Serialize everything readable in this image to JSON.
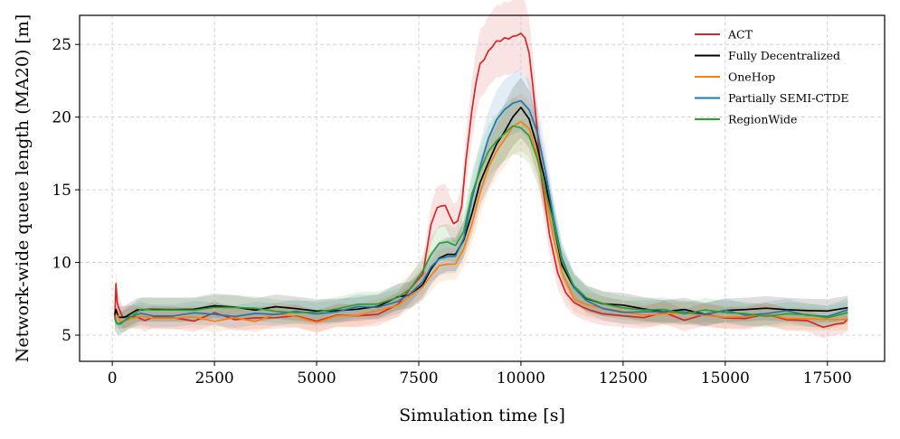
{
  "chart_data": {
    "type": "line",
    "title": "",
    "xlabel": "Simulation time [s]",
    "ylabel": "Network-wide queue length (MA20) [m]",
    "xlim": [
      -800,
      18900
    ],
    "ylim": [
      3.2,
      27
    ],
    "xticks": [
      0,
      2500,
      5000,
      7500,
      10000,
      12500,
      15000,
      17500
    ],
    "yticks": [
      5,
      10,
      15,
      20,
      25
    ],
    "grid": true,
    "legend_position": "top-right",
    "series": [
      {
        "name": "ACT",
        "color": "#d62728",
        "x": [
          60,
          90,
          120,
          160,
          250,
          400,
          600,
          800,
          1000,
          1500,
          2000,
          2500,
          3000,
          3500,
          4000,
          4500,
          5000,
          5500,
          6000,
          6500,
          7000,
          7300,
          7600,
          7800,
          7950,
          8050,
          8150,
          8250,
          8350,
          8450,
          8550,
          8650,
          8800,
          8900,
          9000,
          9100,
          9200,
          9300,
          9400,
          9500,
          9600,
          9700,
          9800,
          9900,
          10000,
          10100,
          10200,
          10300,
          10400,
          10500,
          10700,
          10900,
          11100,
          11300,
          11500,
          11700,
          12000,
          12500,
          13000,
          13500,
          14000,
          14500,
          15000,
          15500,
          16000,
          16500,
          17000,
          17400,
          17700,
          17900,
          18000
        ],
        "values": [
          6.2,
          8.4,
          7.4,
          6.9,
          6.1,
          6.4,
          6.3,
          6.0,
          6.2,
          6.3,
          6.1,
          6.4,
          6.1,
          6.3,
          6.2,
          6.4,
          6.1,
          6.3,
          6.4,
          6.5,
          7.3,
          8.1,
          9.3,
          12.5,
          13.8,
          14.0,
          13.9,
          13.3,
          12.6,
          12.8,
          14.0,
          17.0,
          20.5,
          22.5,
          23.5,
          24.0,
          24.5,
          24.8,
          25.1,
          25.3,
          25.5,
          25.4,
          25.6,
          25.5,
          25.8,
          25.5,
          24.5,
          22.0,
          19.0,
          16.0,
          12.0,
          9.2,
          7.8,
          7.1,
          6.8,
          6.6,
          6.4,
          6.3,
          6.2,
          6.4,
          6.1,
          6.5,
          6.3,
          6.2,
          6.4,
          6.0,
          6.1,
          5.4,
          5.6,
          5.9,
          6.1
        ]
      },
      {
        "name": "Fully Decentralized",
        "color": "#000000",
        "x": [
          60,
          90,
          150,
          300,
          600,
          900,
          1500,
          2000,
          2500,
          3000,
          3500,
          4000,
          4500,
          5000,
          5500,
          6000,
          6500,
          7000,
          7300,
          7600,
          7800,
          8000,
          8200,
          8400,
          8600,
          8800,
          9000,
          9200,
          9400,
          9600,
          9800,
          10000,
          10200,
          10400,
          10600,
          10800,
          11000,
          11300,
          11600,
          12000,
          12500,
          13000,
          13500,
          14000,
          14500,
          15000,
          15500,
          16000,
          16500,
          17000,
          17500,
          18000
        ],
        "values": [
          6.4,
          6.8,
          6.3,
          6.2,
          6.6,
          6.8,
          6.7,
          6.8,
          6.9,
          6.8,
          6.7,
          6.8,
          6.8,
          6.6,
          6.8,
          6.9,
          7.1,
          7.5,
          7.9,
          8.5,
          9.5,
          10.2,
          10.4,
          10.5,
          11.5,
          13.5,
          15.5,
          17.0,
          18.2,
          19.0,
          20.0,
          20.5,
          20.0,
          18.0,
          15.5,
          12.5,
          10.0,
          8.3,
          7.4,
          7.0,
          6.9,
          6.7,
          6.6,
          6.7,
          6.6,
          6.8,
          6.6,
          6.7,
          6.8,
          6.8,
          6.5,
          6.9
        ]
      },
      {
        "name": "OneHop",
        "color": "#ff7f0e",
        "x": [
          60,
          120,
          200,
          400,
          700,
          1000,
          1500,
          2000,
          2500,
          3000,
          3500,
          4000,
          4500,
          5000,
          5500,
          6000,
          6500,
          7000,
          7300,
          7600,
          7800,
          8000,
          8200,
          8400,
          8600,
          8800,
          9000,
          9200,
          9400,
          9600,
          9800,
          10000,
          10200,
          10400,
          10600,
          10800,
          11000,
          11300,
          11600,
          12000,
          12500,
          13000,
          13500,
          14000,
          14500,
          15000,
          15500,
          16000,
          16500,
          17000,
          17500,
          18000
        ],
        "values": [
          6.0,
          6.2,
          5.9,
          6.0,
          6.2,
          6.1,
          6.0,
          6.3,
          6.1,
          6.2,
          6.1,
          6.3,
          6.2,
          6.0,
          6.2,
          6.5,
          6.8,
          7.2,
          7.6,
          8.3,
          9.2,
          9.7,
          9.8,
          9.9,
          10.8,
          12.8,
          14.8,
          16.4,
          17.5,
          18.5,
          19.2,
          19.6,
          19.1,
          17.3,
          14.8,
          11.8,
          9.4,
          7.6,
          7.0,
          6.8,
          6.6,
          6.5,
          6.4,
          6.5,
          6.3,
          6.4,
          6.2,
          6.4,
          6.3,
          6.2,
          6.0,
          6.2
        ]
      },
      {
        "name": "Partially SEMI-CTDE",
        "color": "#1f77b4",
        "x": [
          60,
          120,
          200,
          400,
          700,
          1000,
          1500,
          2000,
          2500,
          3000,
          3500,
          4000,
          4500,
          5000,
          5500,
          6000,
          6500,
          7000,
          7300,
          7600,
          7800,
          8000,
          8200,
          8400,
          8600,
          8800,
          9000,
          9200,
          9400,
          9600,
          9800,
          10000,
          10200,
          10400,
          10600,
          10800,
          11000,
          11300,
          11600,
          12000,
          12500,
          13000,
          13500,
          14000,
          14500,
          15000,
          15500,
          16000,
          16500,
          17000,
          17500,
          18000
        ],
        "values": [
          6.2,
          5.8,
          5.7,
          6.1,
          6.4,
          6.5,
          6.4,
          6.6,
          6.5,
          6.4,
          6.5,
          6.6,
          6.5,
          6.4,
          6.6,
          6.8,
          7.0,
          7.4,
          7.8,
          8.6,
          9.6,
          10.2,
          10.4,
          10.5,
          11.8,
          14.2,
          16.6,
          18.5,
          19.8,
          20.6,
          21.0,
          21.1,
          20.5,
          18.8,
          16.2,
          13.0,
          10.2,
          8.1,
          7.3,
          6.9,
          6.7,
          6.6,
          6.5,
          6.6,
          6.5,
          6.6,
          6.4,
          6.5,
          6.6,
          6.4,
          6.3,
          6.6
        ]
      },
      {
        "name": "RegionWide",
        "color": "#2ca02c",
        "x": [
          60,
          120,
          200,
          400,
          700,
          1000,
          1500,
          2000,
          2500,
          3000,
          3500,
          4000,
          4500,
          5000,
          5500,
          6000,
          6500,
          7000,
          7300,
          7600,
          7800,
          8000,
          8200,
          8400,
          8600,
          8800,
          9000,
          9200,
          9400,
          9600,
          9800,
          10000,
          10200,
          10400,
          10600,
          10800,
          11000,
          11300,
          11600,
          12000,
          12500,
          13000,
          13500,
          14000,
          14500,
          15000,
          15500,
          16000,
          16500,
          17000,
          17500,
          18000
        ],
        "values": [
          6.1,
          5.6,
          5.7,
          6.3,
          6.7,
          6.8,
          6.7,
          6.8,
          6.9,
          6.8,
          6.7,
          6.8,
          6.7,
          6.7,
          6.9,
          7.0,
          7.2,
          7.6,
          8.2,
          9.3,
          10.6,
          11.3,
          11.5,
          11.3,
          12.2,
          14.6,
          16.4,
          17.7,
          18.5,
          19.0,
          19.3,
          19.3,
          18.8,
          17.2,
          15.0,
          12.5,
          10.2,
          8.3,
          7.5,
          7.0,
          6.8,
          6.6,
          6.6,
          6.5,
          6.6,
          6.5,
          6.6,
          6.4,
          6.5,
          6.4,
          6.3,
          6.5
        ]
      }
    ]
  }
}
